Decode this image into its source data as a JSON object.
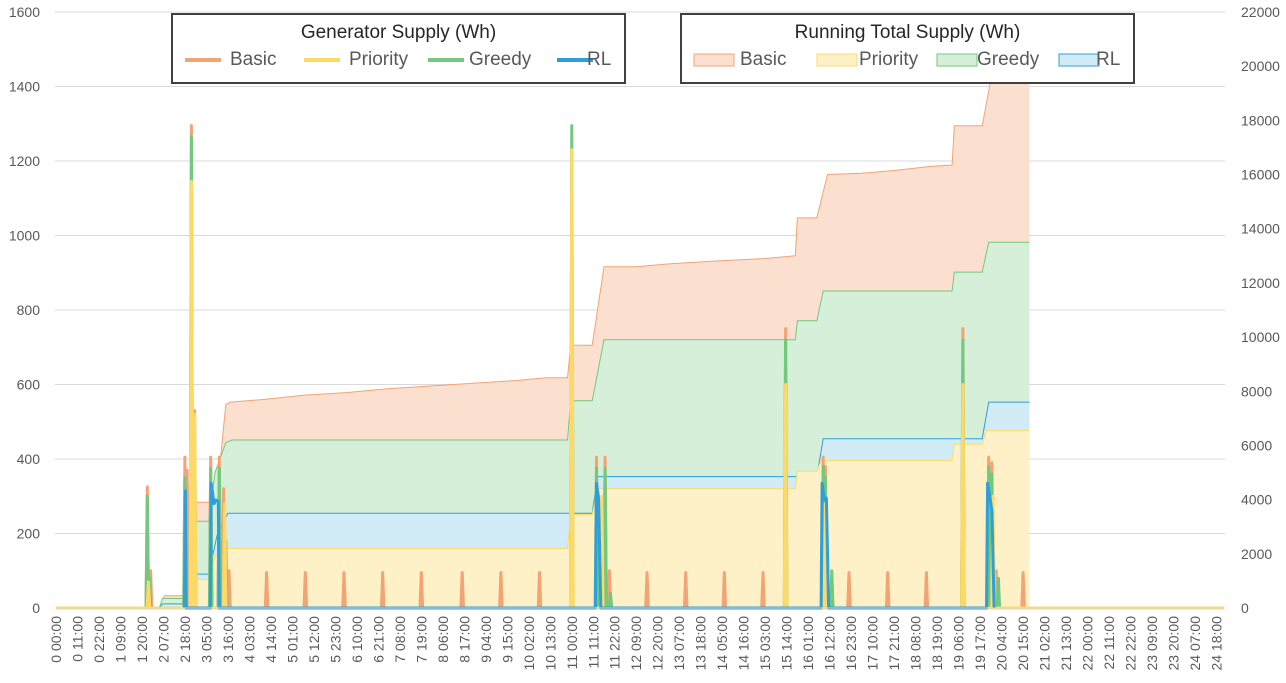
{
  "chart_data": {
    "type": "line",
    "grid": true,
    "x_labels": [
      "0 00:00",
      "0 11:00",
      "0 22:00",
      "1 09:00",
      "1 20:00",
      "2 07:00",
      "2 18:00",
      "3 05:00",
      "3 16:00",
      "4 03:00",
      "4 14:00",
      "5 01:00",
      "5 12:00",
      "5 23:00",
      "6 10:00",
      "6 21:00",
      "7 08:00",
      "7 19:00",
      "8 06:00",
      "8 17:00",
      "9 04:00",
      "9 15:00",
      "10 02:00",
      "10 13:00",
      "11 00:00",
      "11 11:00",
      "11 22:00",
      "12 09:00",
      "12 20:00",
      "13 07:00",
      "13 18:00",
      "14 05:00",
      "14 16:00",
      "15 03:00",
      "15 14:00",
      "16 01:00",
      "16 12:00",
      "16 23:00",
      "17 10:00",
      "17 21:00",
      "18 08:00",
      "18 19:00",
      "19 06:00",
      "19 17:00",
      "20 04:00",
      "20 15:00",
      "21 02:00",
      "21 13:00",
      "22 00:00",
      "22 11:00",
      "22 22:00",
      "23 09:00",
      "23 20:00",
      "24 07:00",
      "24 18:00"
    ],
    "left_axis": {
      "min": 0,
      "max": 1600,
      "step": 200,
      "ticks": [
        "0",
        "200",
        "400",
        "600",
        "800",
        "1000",
        "1200",
        "1400",
        "1600"
      ]
    },
    "right_axis": {
      "min": 0,
      "max": 22000,
      "step": 2000,
      "ticks": [
        "0",
        "2000",
        "4000",
        "6000",
        "8000",
        "10000",
        "12000",
        "14000",
        "16000",
        "18000",
        "20000",
        "22000"
      ]
    },
    "legends": [
      {
        "title": "Generator Supply (Wh)",
        "style": "line",
        "items": [
          "Basic",
          "Priority",
          "Greedy",
          "RL"
        ]
      },
      {
        "title": "Running Total Supply (Wh)",
        "style": "area",
        "items": [
          "Basic",
          "Priority",
          "Greedy",
          "RL"
        ]
      }
    ],
    "colors": {
      "Basic": "#F4A373",
      "Priority": "#FFD966",
      "Greedy": "#70C97E",
      "RL": "#2E9FD8"
    },
    "fill_colors": {
      "Basic": "#FBE0CF",
      "Priority": "#FFF1C7",
      "Greedy": "#D6EFD9",
      "RL": "#D2ECF7"
    },
    "running_total_series": [
      {
        "name": "Basic",
        "axis": "right",
        "points": [
          [
            0,
            0
          ],
          [
            4.8,
            0
          ],
          [
            5.05,
            450
          ],
          [
            6.0,
            450
          ],
          [
            6.5,
            3900
          ],
          [
            7.45,
            3900
          ],
          [
            7.9,
            7500
          ],
          [
            8.1,
            7600
          ],
          [
            9.7,
            7700
          ],
          [
            11.5,
            7850
          ],
          [
            13.5,
            7950
          ],
          [
            15.5,
            8100
          ],
          [
            17.5,
            8200
          ],
          [
            19.5,
            8300
          ],
          [
            21.5,
            8400
          ],
          [
            22.8,
            8500
          ],
          [
            23.8,
            8500
          ],
          [
            23.95,
            9700
          ],
          [
            24.95,
            9700
          ],
          [
            25.5,
            12600
          ],
          [
            27.0,
            12600
          ],
          [
            28.5,
            12700
          ],
          [
            30.5,
            12800
          ],
          [
            33.0,
            12900
          ],
          [
            34.4,
            13000
          ],
          [
            34.5,
            14400
          ],
          [
            35.4,
            14400
          ],
          [
            35.9,
            16000
          ],
          [
            37.5,
            16050
          ],
          [
            39.0,
            16150
          ],
          [
            40.7,
            16300
          ],
          [
            41.7,
            16350
          ],
          [
            41.8,
            17800
          ],
          [
            43.1,
            17800
          ],
          [
            43.5,
            19500
          ],
          [
            45.3,
            19650
          ]
        ]
      },
      {
        "name": "Greedy",
        "axis": "right",
        "points": [
          [
            0,
            0
          ],
          [
            4.8,
            0
          ],
          [
            4.95,
            350
          ],
          [
            6.0,
            350
          ],
          [
            6.55,
            3200
          ],
          [
            7.1,
            3200
          ],
          [
            7.4,
            5000
          ],
          [
            7.9,
            6100
          ],
          [
            8.2,
            6200
          ],
          [
            23.8,
            6200
          ],
          [
            23.95,
            7650
          ],
          [
            24.95,
            7650
          ],
          [
            25.5,
            9900
          ],
          [
            34.4,
            9900
          ],
          [
            34.5,
            10600
          ],
          [
            35.4,
            10600
          ],
          [
            35.7,
            11700
          ],
          [
            41.7,
            11700
          ],
          [
            41.8,
            12400
          ],
          [
            43.1,
            12400
          ],
          [
            43.4,
            13500
          ],
          [
            45.3,
            13500
          ]
        ]
      },
      {
        "name": "RL",
        "axis": "right",
        "points": [
          [
            0,
            0
          ],
          [
            4.8,
            0
          ],
          [
            4.95,
            150
          ],
          [
            6.0,
            150
          ],
          [
            6.55,
            1250
          ],
          [
            7.1,
            1250
          ],
          [
            7.5,
            2700
          ],
          [
            8.0,
            3500
          ],
          [
            23.8,
            3500
          ],
          [
            23.95,
            3500
          ],
          [
            24.95,
            3500
          ],
          [
            25.2,
            4850
          ],
          [
            34.4,
            4850
          ],
          [
            34.5,
            4850
          ],
          [
            35.4,
            4850
          ],
          [
            35.7,
            6250
          ],
          [
            41.7,
            6250
          ],
          [
            41.8,
            6250
          ],
          [
            43.1,
            6250
          ],
          [
            43.4,
            7600
          ],
          [
            45.3,
            7600
          ]
        ]
      },
      {
        "name": "Priority",
        "axis": "right",
        "points": [
          [
            0,
            0
          ],
          [
            6.0,
            0
          ],
          [
            6.3,
            1050
          ],
          [
            7.1,
            1050
          ],
          [
            7.4,
            1900
          ],
          [
            7.9,
            2200
          ],
          [
            8.1,
            2200
          ],
          [
            23.8,
            2200
          ],
          [
            23.95,
            3450
          ],
          [
            24.95,
            3450
          ],
          [
            25.2,
            4400
          ],
          [
            34.4,
            4400
          ],
          [
            34.5,
            5050
          ],
          [
            35.4,
            5050
          ],
          [
            35.6,
            5450
          ],
          [
            41.7,
            5450
          ],
          [
            41.8,
            6050
          ],
          [
            43.1,
            6050
          ],
          [
            43.3,
            6550
          ],
          [
            45.3,
            6550
          ]
        ]
      }
    ],
    "generator_series": [
      {
        "name": "Basic",
        "axis": "left",
        "peaks": [
          [
            4.25,
            325
          ],
          [
            4.4,
            100
          ],
          [
            6.0,
            405
          ],
          [
            6.1,
            370
          ],
          [
            6.3,
            1295
          ],
          [
            6.45,
            530
          ],
          [
            7.2,
            405
          ],
          [
            7.6,
            405
          ],
          [
            7.8,
            320
          ],
          [
            8.05,
            100
          ],
          [
            9.8,
            95
          ],
          [
            11.6,
            95
          ],
          [
            13.4,
            95
          ],
          [
            15.2,
            95
          ],
          [
            17.0,
            95
          ],
          [
            18.9,
            95
          ],
          [
            20.7,
            95
          ],
          [
            22.5,
            95
          ],
          [
            24.0,
            1230
          ],
          [
            25.15,
            405
          ],
          [
            25.55,
            405
          ],
          [
            25.75,
            100
          ],
          [
            27.5,
            95
          ],
          [
            29.3,
            95
          ],
          [
            31.1,
            95
          ],
          [
            32.9,
            95
          ],
          [
            33.95,
            750
          ],
          [
            35.7,
            405
          ],
          [
            35.8,
            380
          ],
          [
            36.9,
            95
          ],
          [
            38.7,
            95
          ],
          [
            40.5,
            95
          ],
          [
            42.2,
            750
          ],
          [
            43.4,
            405
          ],
          [
            43.55,
            390
          ],
          [
            43.75,
            100
          ],
          [
            45.0,
            95
          ]
        ]
      },
      {
        "name": "Greedy",
        "axis": "left",
        "peaks": [
          [
            4.25,
            300
          ],
          [
            4.35,
            80
          ],
          [
            6.0,
            350
          ],
          [
            6.3,
            1265
          ],
          [
            6.45,
            500
          ],
          [
            7.2,
            375
          ],
          [
            7.6,
            375
          ],
          [
            7.9,
            180
          ],
          [
            24.0,
            1295
          ],
          [
            25.15,
            375
          ],
          [
            25.55,
            375
          ],
          [
            25.8,
            40
          ],
          [
            33.95,
            720
          ],
          [
            35.7,
            380
          ],
          [
            35.8,
            350
          ],
          [
            36.1,
            100
          ],
          [
            42.2,
            720
          ],
          [
            43.4,
            380
          ],
          [
            43.55,
            360
          ],
          [
            43.85,
            80
          ]
        ]
      },
      {
        "name": "Priority",
        "axis": "left",
        "peaks": [
          [
            4.3,
            70
          ],
          [
            6.3,
            1145
          ],
          [
            6.45,
            520
          ],
          [
            7.85,
            280
          ],
          [
            24.0,
            1230
          ],
          [
            25.4,
            300
          ],
          [
            33.95,
            600
          ],
          [
            35.8,
            280
          ],
          [
            42.2,
            600
          ],
          [
            43.6,
            300
          ]
        ]
      },
      {
        "name": "RL",
        "axis": "left",
        "points": [
          [
            5.98,
            0
          ],
          [
            6.02,
            315
          ],
          [
            6.06,
            0
          ],
          [
            7.18,
            0
          ],
          [
            7.22,
            335
          ],
          [
            7.35,
            280
          ],
          [
            7.45,
            290
          ],
          [
            7.55,
            285
          ],
          [
            7.6,
            0
          ],
          [
            25.1,
            0
          ],
          [
            25.15,
            335
          ],
          [
            25.25,
            295
          ],
          [
            25.35,
            0
          ],
          [
            35.6,
            0
          ],
          [
            35.65,
            335
          ],
          [
            35.75,
            290
          ],
          [
            35.85,
            295
          ],
          [
            35.95,
            0
          ],
          [
            43.3,
            0
          ],
          [
            43.35,
            335
          ],
          [
            43.45,
            300
          ],
          [
            43.55,
            260
          ],
          [
            43.65,
            0
          ]
        ]
      }
    ]
  }
}
